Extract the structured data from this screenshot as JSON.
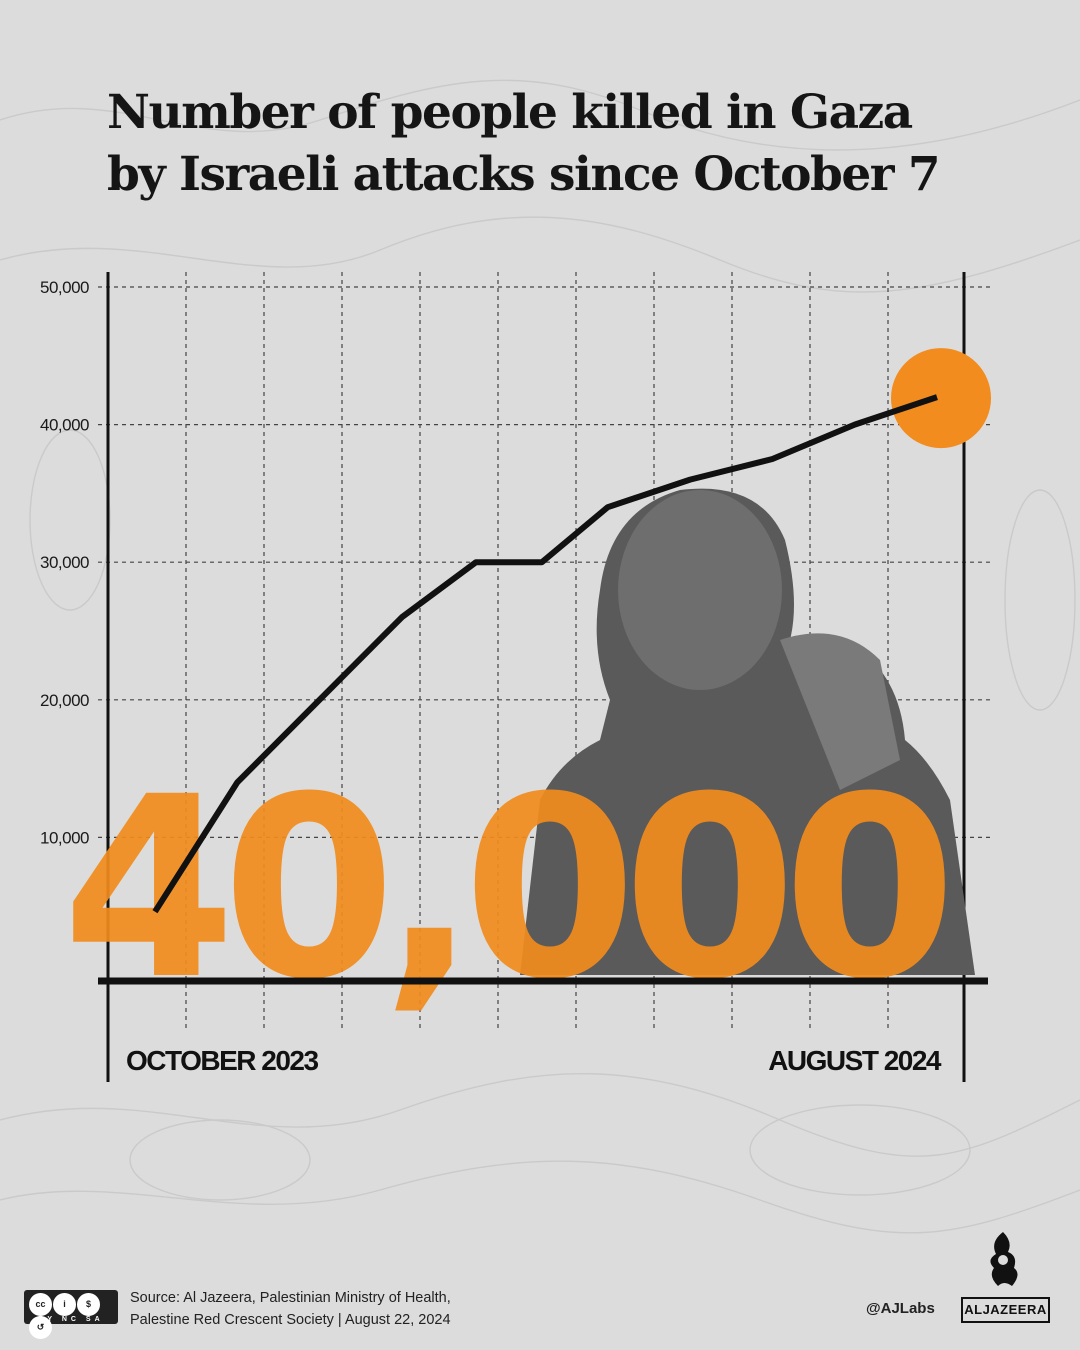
{
  "title_lines": [
    "Number of people killed in Gaza",
    "by Israeli attacks since October 7"
  ],
  "chart_data": {
    "type": "line",
    "title": "Number of people killed in Gaza by Israeli attacks since October 7",
    "x_labels": [
      "OCTOBER 2023",
      "AUGUST 2024"
    ],
    "y_ticks": [
      "50,000",
      "40,000",
      "30,000",
      "20,000",
      "10,000"
    ],
    "y_tick_values": [
      50000,
      40000,
      30000,
      20000,
      10000
    ],
    "ylim": [
      0,
      50000
    ],
    "xlim": [
      0,
      11
    ],
    "grid": true,
    "x": [
      0,
      1,
      2,
      3,
      3.9,
      4.7,
      5.5,
      6.5,
      7.5,
      8.5,
      9.5
    ],
    "values": [
      4600,
      14000,
      20000,
      26000,
      30000,
      30000,
      34000,
      36000,
      37500,
      40000,
      42000
    ],
    "highlight_value": "40,000",
    "accent_color": "#f28c1e",
    "line_color": "#111111"
  },
  "footer": {
    "source_line1": "Source: Al Jazeera, Palestinian Ministry of Health,",
    "source_line2": "Palestine Red Crescent Society  |  August 22, 2024",
    "handle": "@AJLabs",
    "logo_text": "ALJAZEERA",
    "license_text": "BY  NC  SA"
  }
}
